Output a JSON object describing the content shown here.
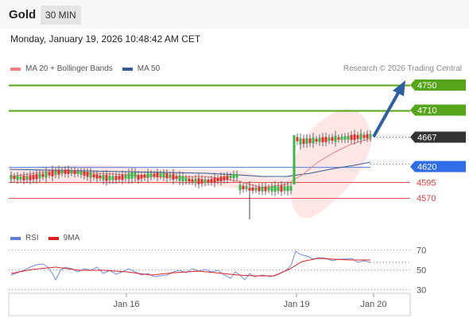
{
  "header": {
    "title": "Gold",
    "timeframe": "30 MIN",
    "datetime": "Monday, January 19, 2026 10:48:42 AM CET"
  },
  "price_legend": {
    "item1": {
      "label": "MA 20 + Bollinger Bands",
      "color": "#f08080"
    },
    "item2": {
      "label": "MA 50",
      "color": "#335a95"
    },
    "credit": "Research © 2026 Trading Central"
  },
  "rsi_legend": {
    "item1": {
      "label": "RSI",
      "color": "#5b7fd6"
    },
    "item2": {
      "label": "9MA",
      "color": "#e02020"
    }
  },
  "colors": {
    "resistance": "#56a419",
    "pivot": "#2f6ee6",
    "support": "#e05050",
    "current": "#333333",
    "arrow": "#2f5f9e"
  },
  "chart_data": {
    "type": "candlestick",
    "levels": [
      {
        "value": 4750,
        "label": "4750",
        "kind": "resistance"
      },
      {
        "value": 4710,
        "label": "4710",
        "kind": "resistance"
      },
      {
        "value": 4667,
        "label": "4667",
        "kind": "current"
      },
      {
        "value": 4620,
        "label": "4620",
        "kind": "pivot"
      },
      {
        "value": 4595,
        "label": "4595",
        "kind": "support"
      },
      {
        "value": 4570,
        "label": "4570",
        "kind": "support"
      }
    ],
    "x_ticks": [
      "Jan 16",
      "Jan 19",
      "Jan 20"
    ],
    "rsi": {
      "ticks": [
        "70",
        "50",
        "30"
      ],
      "ylim": [
        20,
        80
      ]
    },
    "ylim": [
      4530,
      4760
    ]
  }
}
